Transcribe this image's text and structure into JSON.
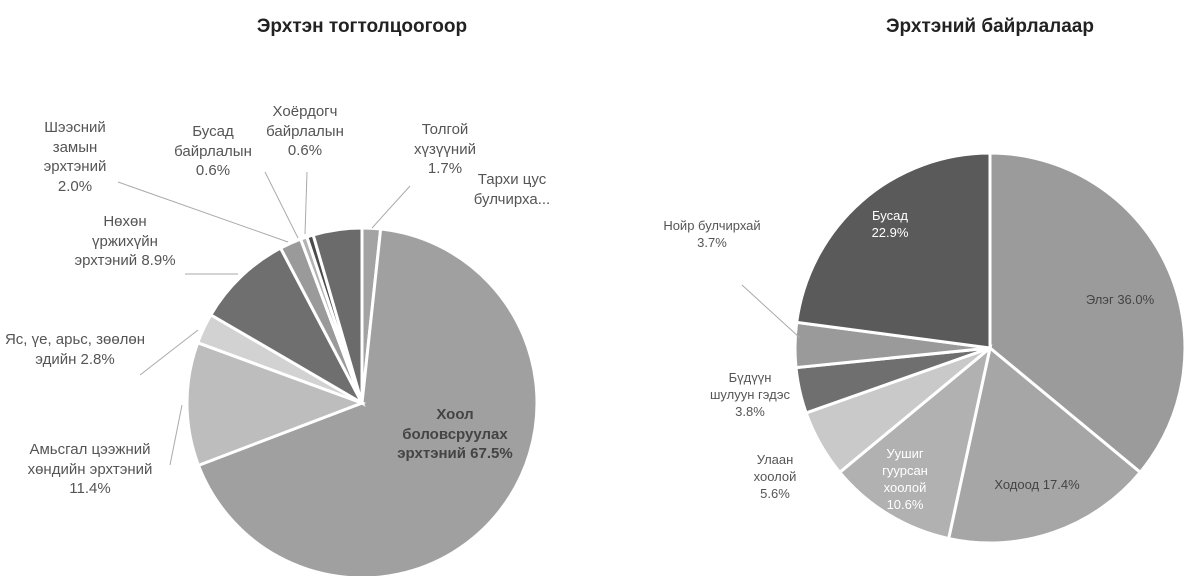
{
  "chart_data": [
    {
      "type": "pie",
      "title": "Эрхтэн тогтолцоогоор",
      "categories": [
        "Толгой хүзүүний",
        "Хоол боловсруулах эрхтэний",
        "Амьсгал цээжний хөндийн эрхтэний",
        "Яс, үе, арьс, зөөлөн эдийн",
        "Нөхөн үржихүйн эрхтэний",
        "Шээсний замын эрхтэний",
        "Бусад байрлалын",
        "Хоёрдогч байрлалын",
        "Тархи цус булчирха..."
      ],
      "values": [
        1.7,
        67.5,
        11.4,
        2.8,
        8.9,
        2.0,
        0.6,
        0.6,
        4.5
      ],
      "value_labels": [
        "1.7%",
        "67.5%",
        "11.4%",
        "2.8%",
        "8.9%",
        "2.0%",
        "0.6%",
        "0.6%",
        null
      ],
      "colors": [
        "#a3a3a3",
        "#a0a0a0",
        "#bdbdbd",
        "#d2d2d2",
        "#6f6f6f",
        "#9a9a9a",
        "#b3b3b3",
        "#4b4b4b",
        "#6b6b6b"
      ]
    },
    {
      "type": "pie",
      "title": "Эрхтэний байрлалаар",
      "categories": [
        "Элэг",
        "Ходоод",
        "Уушиг гуурсан хоолой",
        "Улаан хоолой",
        "Бүдүүн шулуун гэдэс",
        "Нойр булчирхай",
        "Бусад"
      ],
      "values": [
        36.0,
        17.4,
        10.6,
        5.6,
        3.8,
        3.7,
        22.9
      ],
      "value_labels": [
        "36.0%",
        "17.4%",
        "10.6%",
        "5.6%",
        "3.8%",
        "3.7%",
        "22.9%"
      ],
      "colors": [
        "#9b9b9b",
        "#a6a6a6",
        "#b1b1b1",
        "#c9c9c9",
        "#6f6f6f",
        "#9a9a9a",
        "#5a5a5a"
      ]
    }
  ]
}
